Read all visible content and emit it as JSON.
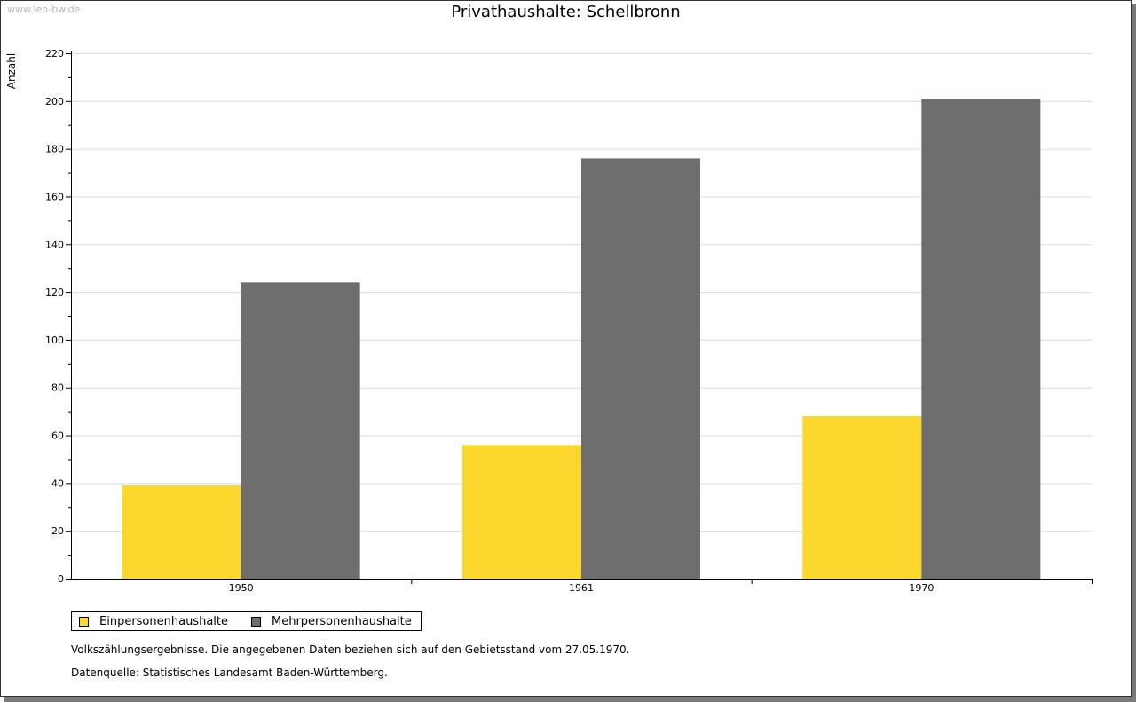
{
  "watermark": "www.leo-bw.de",
  "chart_data": {
    "type": "bar",
    "title": "Privathaushalte: Schellbronn",
    "ylabel": "Anzahl",
    "xlabel": "",
    "categories": [
      "1950",
      "1961",
      "1970"
    ],
    "series": [
      {
        "name": "Einpersonenhaushalte",
        "color": "#fcd72d",
        "values": [
          39,
          56,
          68
        ]
      },
      {
        "name": "Mehrpersonenhaushalte",
        "color": "#6e6e6e",
        "values": [
          124,
          176,
          201
        ]
      }
    ],
    "ylim": [
      0,
      220
    ],
    "yticks": [
      0,
      20,
      40,
      60,
      80,
      100,
      120,
      140,
      160,
      180,
      200,
      220
    ],
    "grid": true,
    "legend_position": "bottom-left"
  },
  "notes": {
    "line1": "Volkszählungsergebnisse. Die angegebenen Daten beziehen sich auf den Gebietsstand vom 27.05.1970.",
    "line2": "Datenquelle: Statistisches Landesamt Baden-Württemberg."
  }
}
